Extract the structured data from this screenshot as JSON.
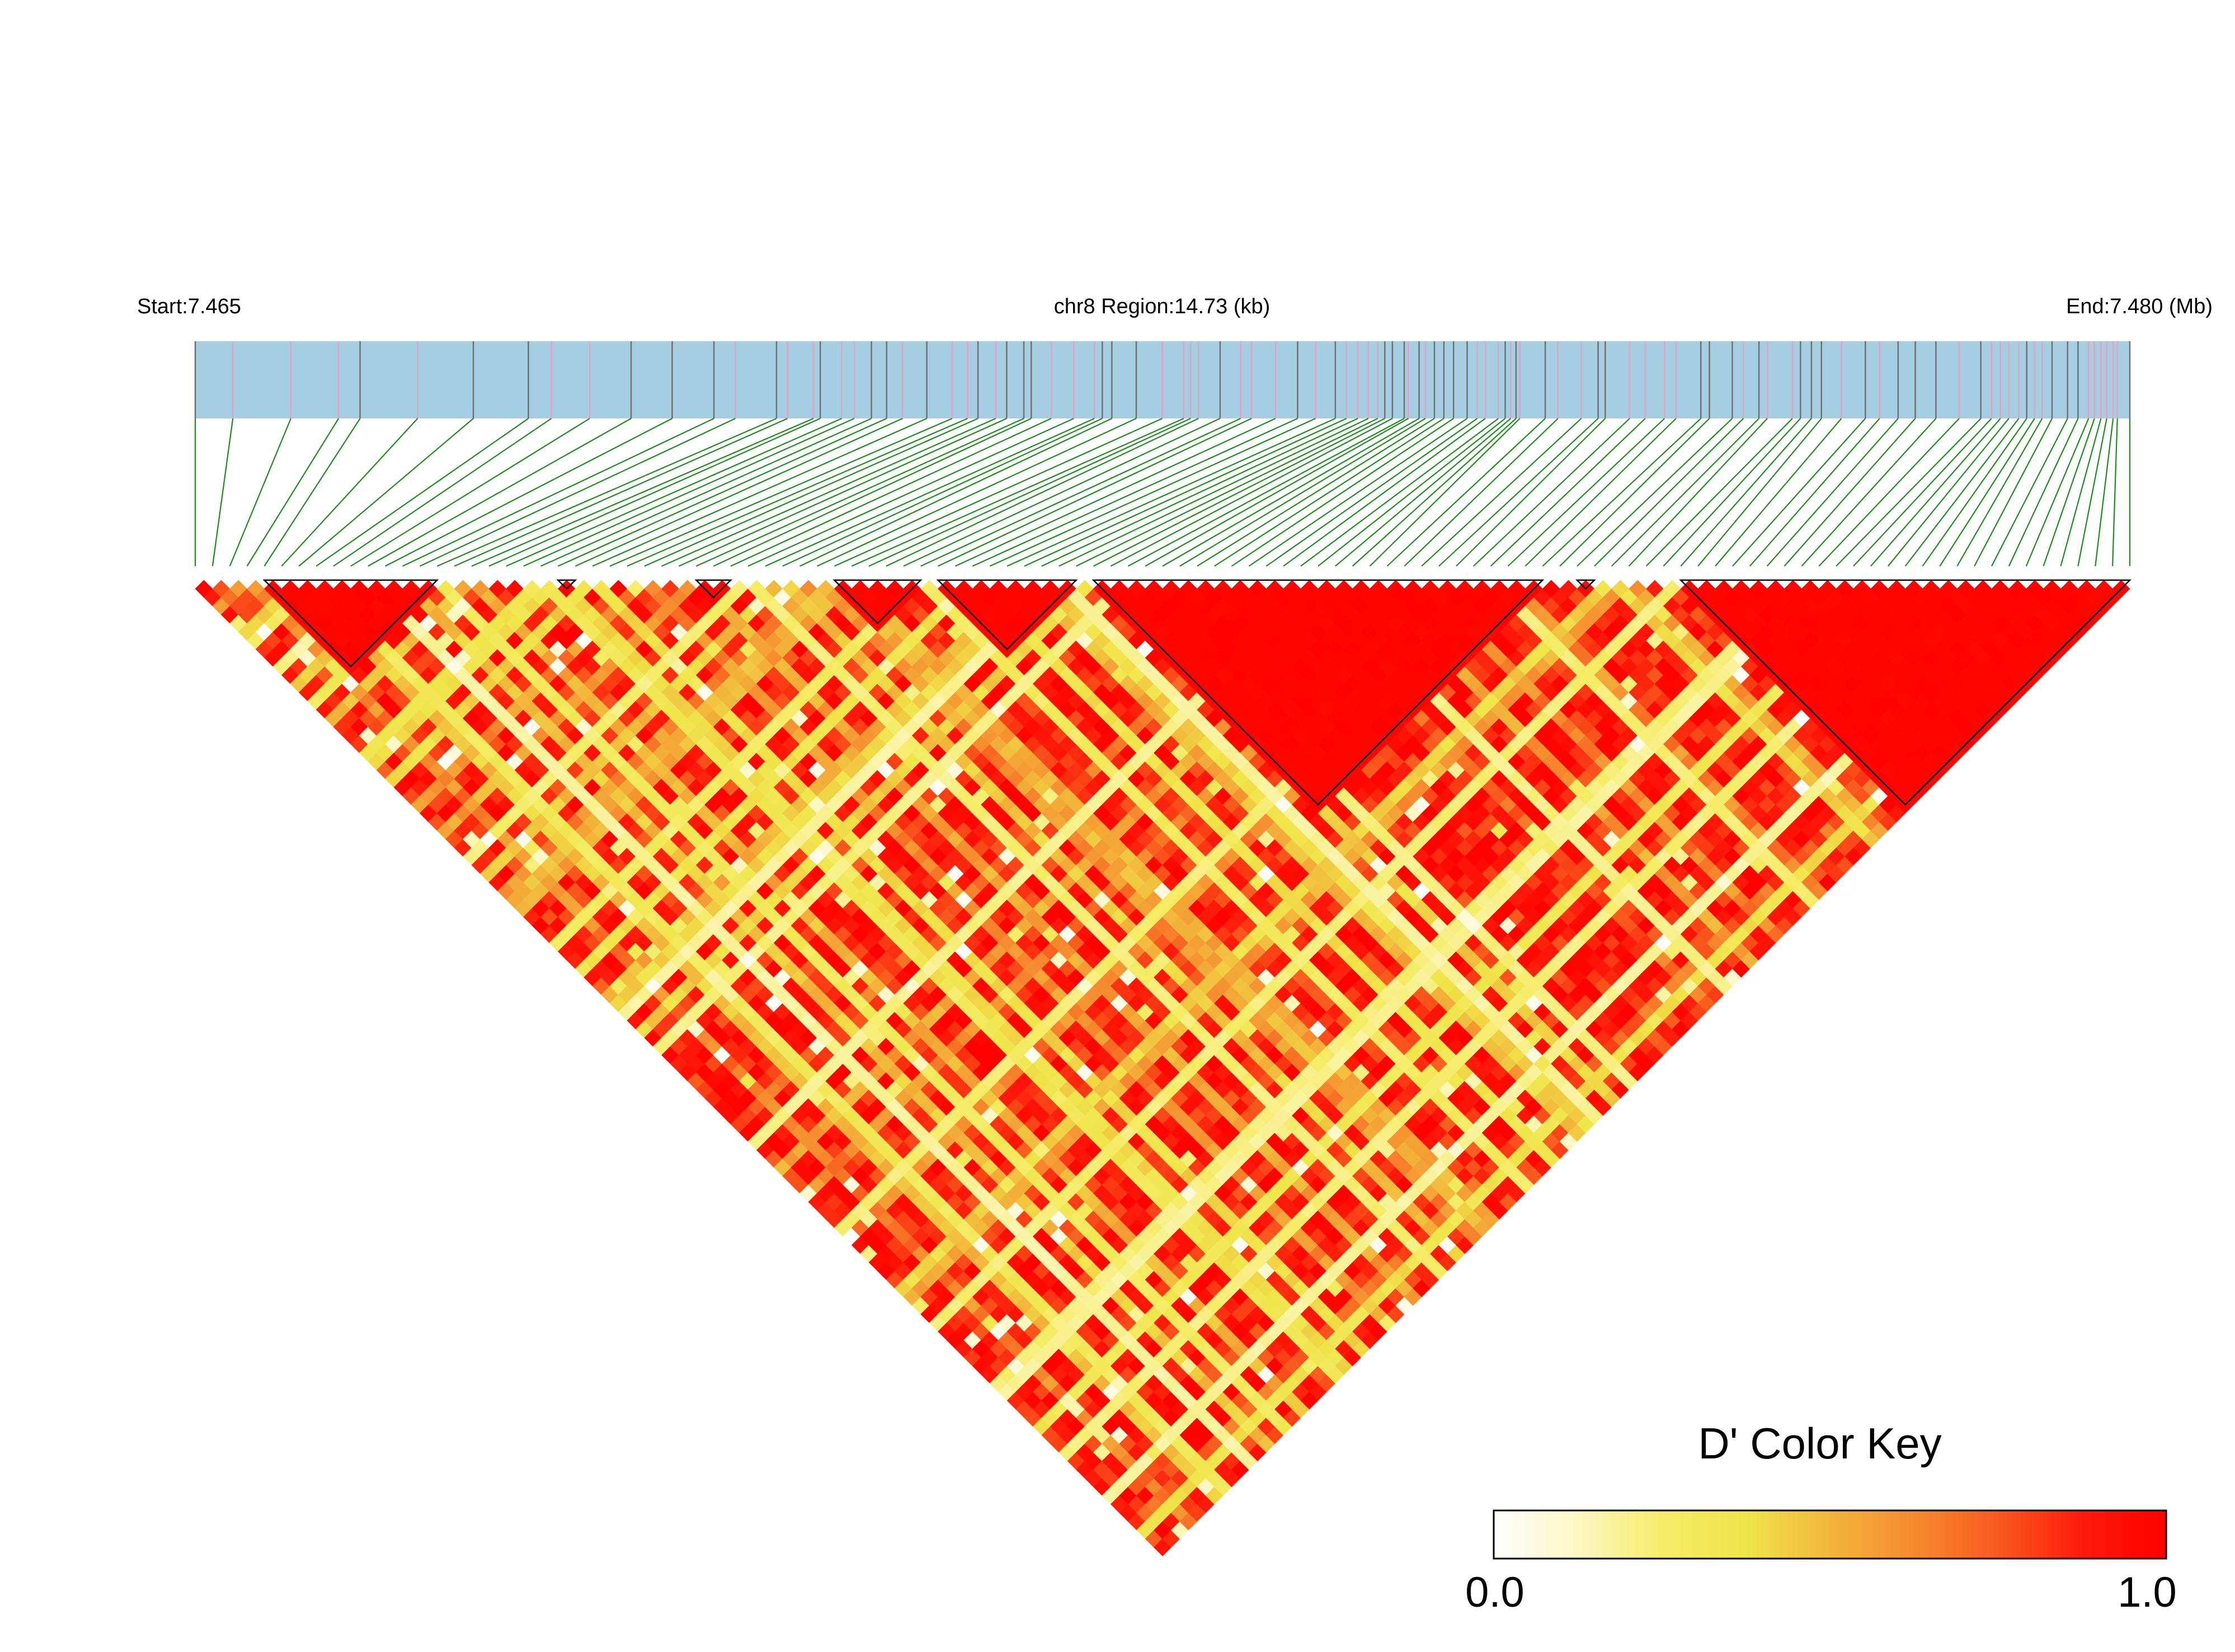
{
  "header": {
    "start_label": "Start:7.465",
    "region_label": "chr8 Region:14.73 (kb)",
    "end_label": "End:7.480 (Mb)"
  },
  "legend": {
    "title": "D' Color Key",
    "min_label": "0.0",
    "max_label": "1.0",
    "colors": [
      "#ffffff",
      "#fdf7c2",
      "#f5ec6a",
      "#f0e54a",
      "#f2b63c",
      "#f68a2f",
      "#f95a1e",
      "#fd1a0a",
      "#ff0000"
    ]
  },
  "colors": {
    "track_fill": "#a6cee3",
    "snp_line_dark": "#707070",
    "snp_line_pink": "#e6a0c4",
    "connector": "#1f8b1f",
    "block_outline": "#000000"
  },
  "chart_data": {
    "type": "heatmap",
    "chromosome": "chr8",
    "region_start_mb": 7.465,
    "region_end_mb": 7.48,
    "region_length_kb": 14.73,
    "snp_count": 113,
    "value_range": [
      0.0,
      1.0
    ],
    "haplotype_blocks": [
      [
        5,
        15
      ],
      [
        22,
        23
      ],
      [
        30,
        32
      ],
      [
        38,
        43
      ],
      [
        44,
        52
      ],
      [
        53,
        79
      ],
      [
        81,
        82
      ],
      [
        87,
        113
      ]
    ]
  }
}
